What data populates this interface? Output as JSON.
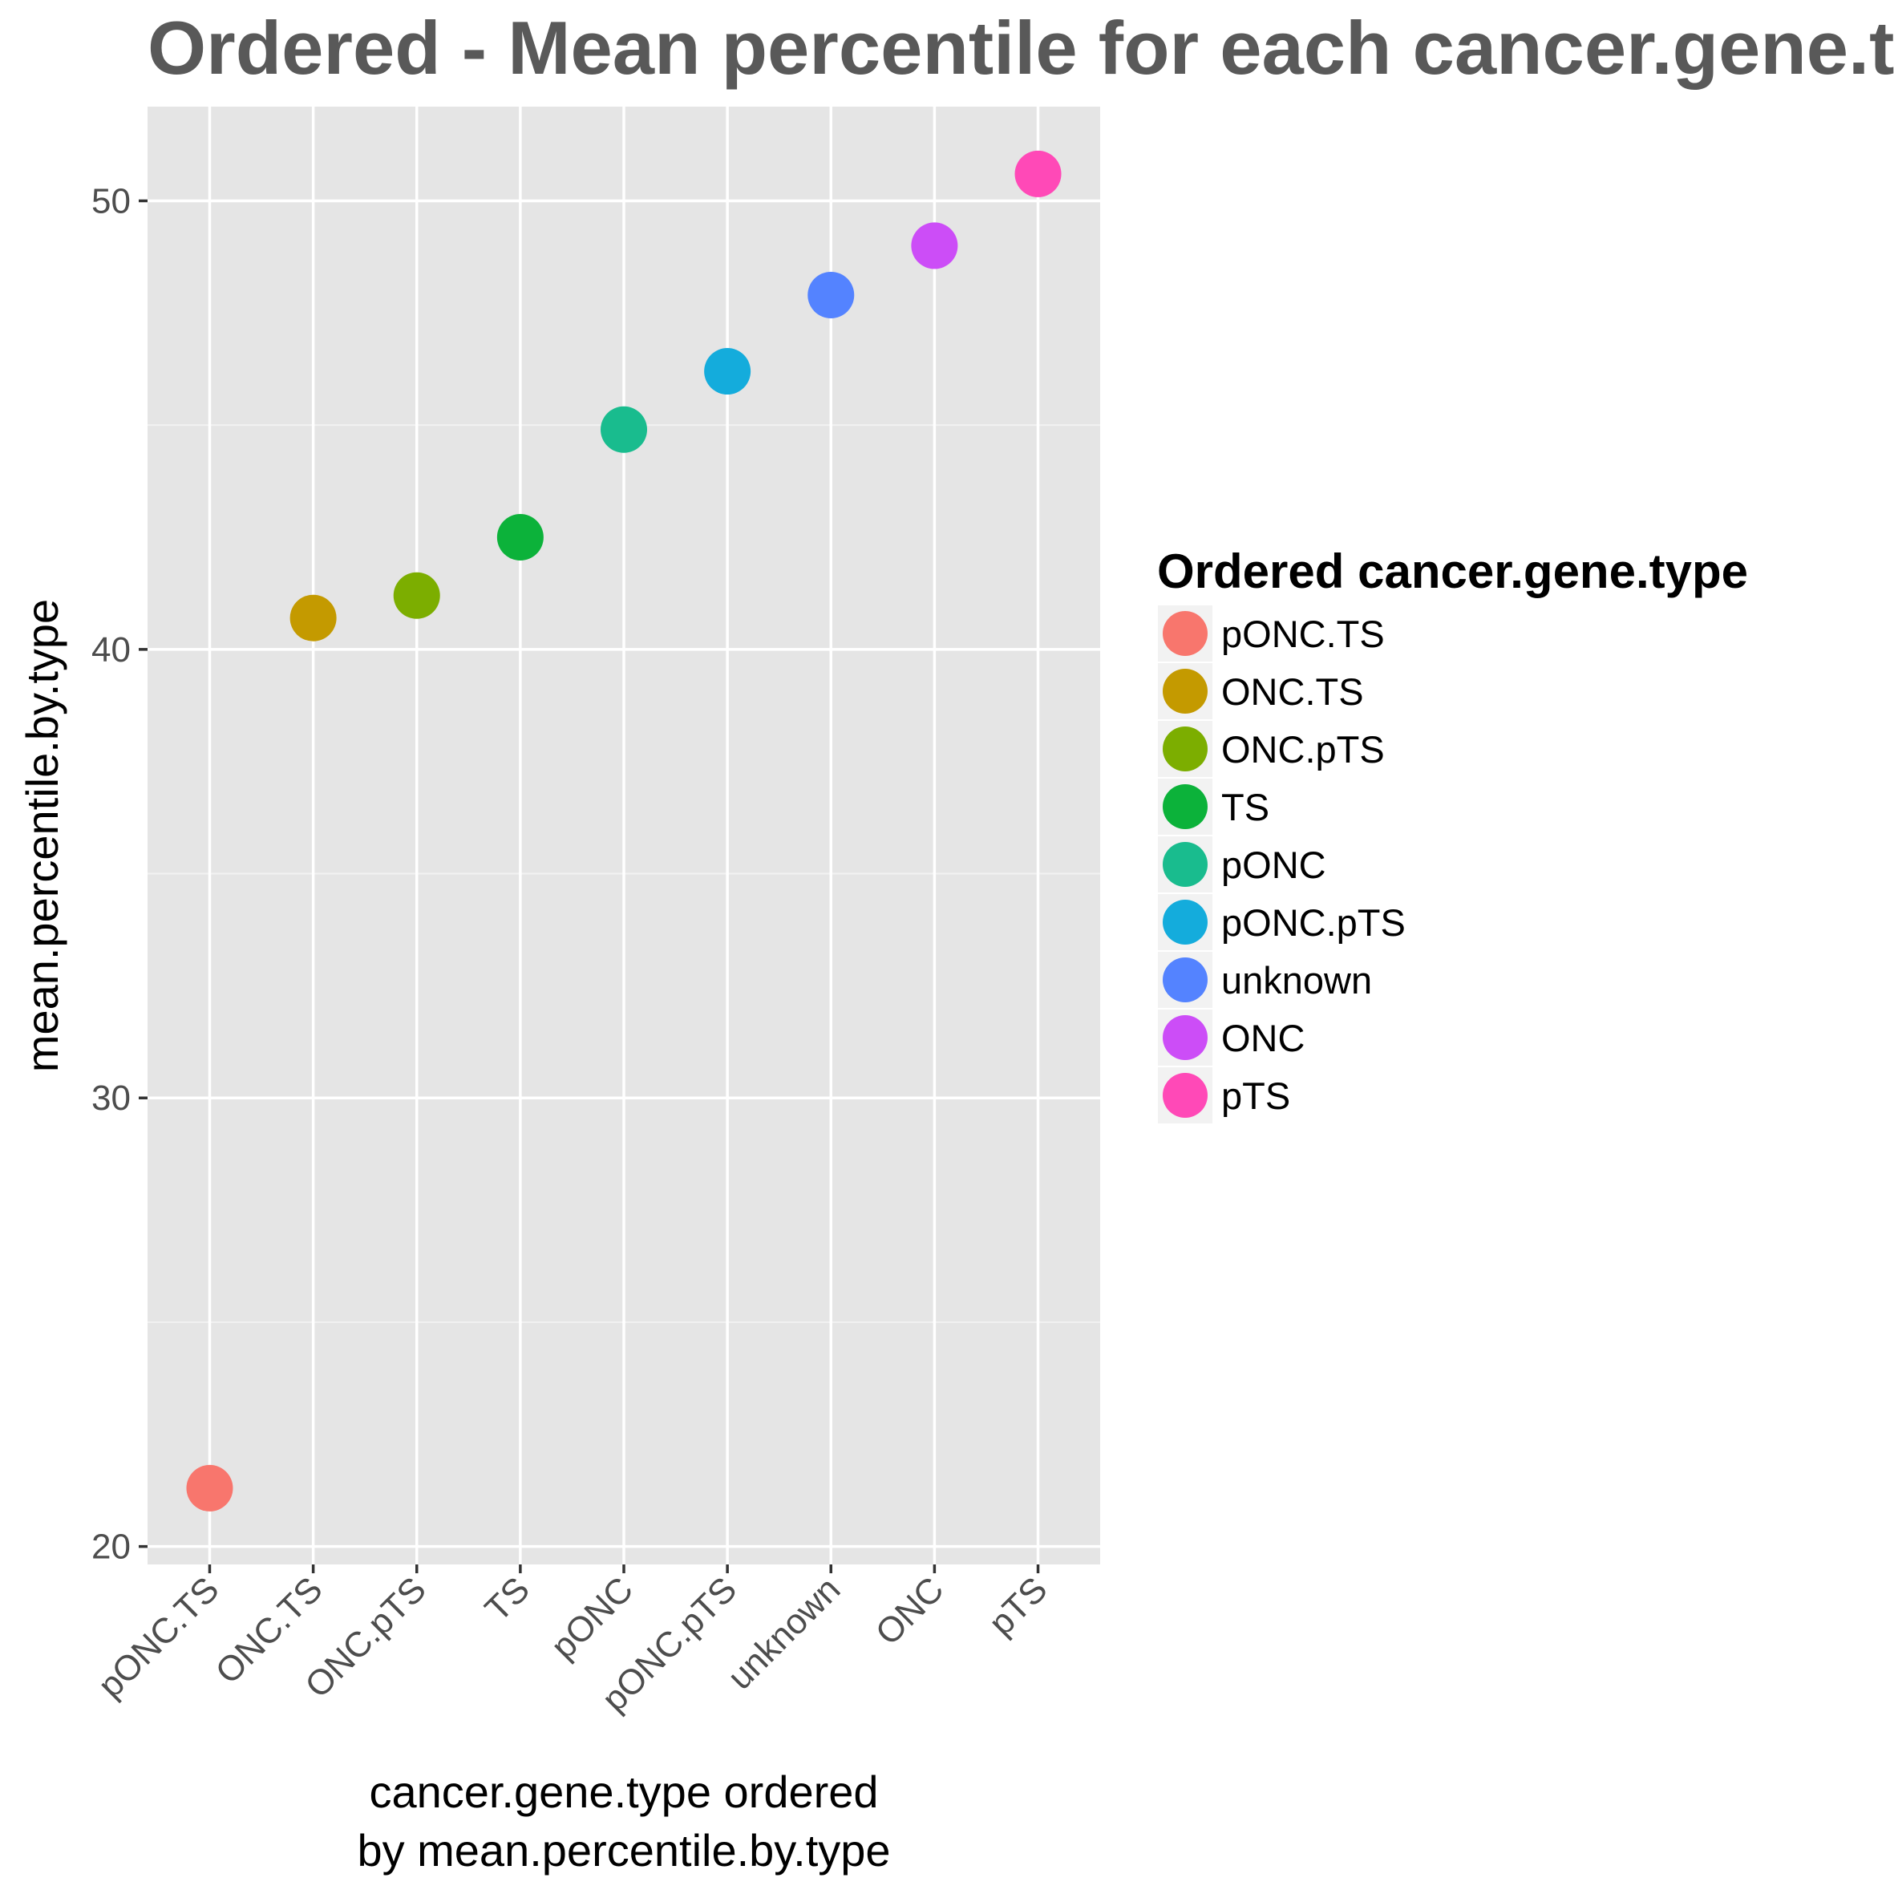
{
  "chart_data": {
    "type": "scatter",
    "title": "Ordered - Mean percentile for each cancer.gene.type",
    "xlabel": [
      "cancer.gene.type ordered",
      "by mean.percentile.by.type"
    ],
    "ylabel": "mean.percentile.by.type",
    "categories": [
      "pONC.TS",
      "ONC.TS",
      "ONC.pTS",
      "TS",
      "pONC",
      "pONC.pTS",
      "unknown",
      "ONC",
      "pTS"
    ],
    "values": [
      21.3,
      40.7,
      41.2,
      42.5,
      44.9,
      46.2,
      47.9,
      49.0,
      50.6
    ],
    "colors": [
      "#F8766D",
      "#C49A00",
      "#7CAE00",
      "#0CB23A",
      "#19BC8E",
      "#14ACDC",
      "#5483FF",
      "#CC4DF7",
      "#FF49B7"
    ],
    "ylim": [
      19.6,
      52.1
    ],
    "yticks": [
      20,
      30,
      40,
      50
    ],
    "grid": true,
    "panel_background": "#E5E5E5",
    "legend": {
      "title": "Ordered cancer.gene.type",
      "placement": "right",
      "entries": [
        "pONC.TS",
        "ONC.TS",
        "ONC.pTS",
        "TS",
        "pONC",
        "pONC.pTS",
        "unknown",
        "ONC",
        "pTS"
      ]
    }
  }
}
